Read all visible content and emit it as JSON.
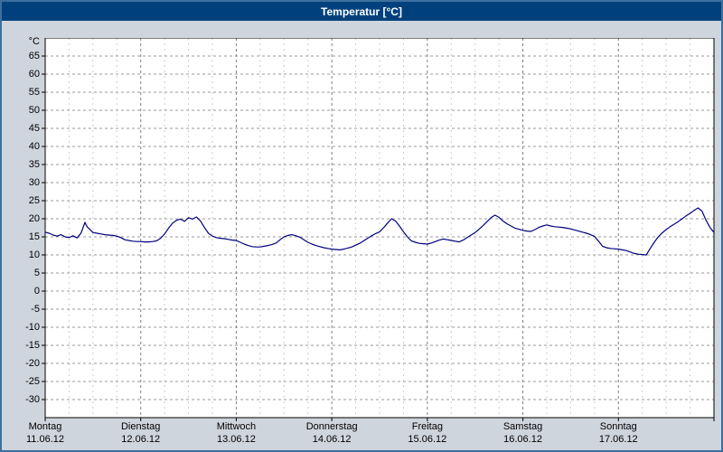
{
  "window": {
    "title": "Temperatur [°C]"
  },
  "colors": {
    "titlebar": "#00417d",
    "window_border": "#3d6f9e",
    "background": "#cfd5dc",
    "plot_background": "#ffffff",
    "line": "#00007f",
    "grid_horizontal": "#999999",
    "grid_day": "#808080",
    "grid_subday": "#cccccc"
  },
  "chart_data": {
    "type": "line",
    "title": "Temperatur [°C]",
    "y_unit": "°C",
    "ylabel": "Temperatur",
    "xlabel": "",
    "ylim": [
      -35,
      70
    ],
    "ytick_step": 5,
    "yticks": [
      65,
      60,
      55,
      50,
      45,
      40,
      35,
      30,
      25,
      20,
      15,
      10,
      5,
      0,
      -5,
      -10,
      -15,
      -20,
      -25,
      -30
    ],
    "grid": "dashed",
    "legend": "none",
    "x_total_hours": 168,
    "subday_grid_hours": 6,
    "x_day_labels": [
      {
        "day": "Montag",
        "date": "11.06.12"
      },
      {
        "day": "Dienstag",
        "date": "12.06.12"
      },
      {
        "day": "Mittwoch",
        "date": "13.06.12"
      },
      {
        "day": "Donnerstag",
        "date": "14.06.12"
      },
      {
        "day": "Freitag",
        "date": "15.06.12"
      },
      {
        "day": "Samstag",
        "date": "16.06.12"
      },
      {
        "day": "Sonntag",
        "date": "17.06.12"
      }
    ],
    "series": [
      {
        "name": "Temperatur",
        "color": "#00007f",
        "points": [
          [
            0,
            16.3
          ],
          [
            1,
            16.0
          ],
          [
            2,
            15.5
          ],
          [
            3,
            15.2
          ],
          [
            4,
            15.6
          ],
          [
            5,
            15.0
          ],
          [
            6,
            14.8
          ],
          [
            7,
            15.3
          ],
          [
            8,
            14.7
          ],
          [
            9,
            16.0
          ],
          [
            10,
            19.0
          ],
          [
            10.5,
            17.8
          ],
          [
            11,
            17.3
          ],
          [
            12,
            16.2
          ],
          [
            13,
            16.0
          ],
          [
            14,
            15.8
          ],
          [
            15,
            15.6
          ],
          [
            16,
            15.5
          ],
          [
            17,
            15.4
          ],
          [
            18,
            15.2
          ],
          [
            19,
            14.8
          ],
          [
            20,
            14.2
          ],
          [
            21,
            14.0
          ],
          [
            22,
            13.8
          ],
          [
            23,
            13.7
          ],
          [
            24,
            13.7
          ],
          [
            25,
            13.6
          ],
          [
            26,
            13.6
          ],
          [
            27,
            13.7
          ],
          [
            28,
            13.9
          ],
          [
            29,
            14.6
          ],
          [
            30,
            15.8
          ],
          [
            31,
            17.4
          ],
          [
            32,
            18.8
          ],
          [
            33,
            19.6
          ],
          [
            34,
            19.9
          ],
          [
            35,
            19.3
          ],
          [
            36,
            20.3
          ],
          [
            37,
            19.9
          ],
          [
            38,
            20.5
          ],
          [
            39,
            19.4
          ],
          [
            40,
            17.6
          ],
          [
            41,
            16.0
          ],
          [
            42,
            15.2
          ],
          [
            43,
            14.8
          ],
          [
            44,
            14.6
          ],
          [
            45,
            14.5
          ],
          [
            46,
            14.3
          ],
          [
            47,
            14.1
          ],
          [
            48,
            14.0
          ],
          [
            49,
            13.5
          ],
          [
            50,
            13.0
          ],
          [
            51,
            12.6
          ],
          [
            52,
            12.3
          ],
          [
            53,
            12.2
          ],
          [
            54,
            12.2
          ],
          [
            55,
            12.4
          ],
          [
            56,
            12.6
          ],
          [
            57,
            12.9
          ],
          [
            58,
            13.3
          ],
          [
            59,
            14.2
          ],
          [
            60,
            15.0
          ],
          [
            61,
            15.4
          ],
          [
            62,
            15.6
          ],
          [
            63,
            15.3
          ],
          [
            64,
            14.9
          ],
          [
            65,
            14.2
          ],
          [
            66,
            13.5
          ],
          [
            67,
            13.0
          ],
          [
            68,
            12.6
          ],
          [
            69,
            12.3
          ],
          [
            70,
            12.0
          ],
          [
            71,
            11.8
          ],
          [
            72,
            11.6
          ],
          [
            73,
            11.5
          ],
          [
            74,
            11.4
          ],
          [
            75,
            11.6
          ],
          [
            76,
            11.9
          ],
          [
            77,
            12.2
          ],
          [
            78,
            12.7
          ],
          [
            79,
            13.2
          ],
          [
            80,
            13.9
          ],
          [
            81,
            14.6
          ],
          [
            82,
            15.3
          ],
          [
            83,
            15.9
          ],
          [
            84,
            16.4
          ],
          [
            85,
            17.5
          ],
          [
            86,
            18.8
          ],
          [
            87,
            20.0
          ],
          [
            88,
            19.4
          ],
          [
            89,
            18.0
          ],
          [
            90,
            16.4
          ],
          [
            91,
            15.0
          ],
          [
            92,
            13.9
          ],
          [
            93,
            13.5
          ],
          [
            94,
            13.2
          ],
          [
            95,
            13.1
          ],
          [
            96,
            13.0
          ],
          [
            97,
            13.3
          ],
          [
            98,
            13.7
          ],
          [
            99,
            14.1
          ],
          [
            100,
            14.4
          ],
          [
            101,
            14.2
          ],
          [
            102,
            14.0
          ],
          [
            103,
            13.8
          ],
          [
            104,
            13.6
          ],
          [
            105,
            14.1
          ],
          [
            106,
            14.8
          ],
          [
            107,
            15.5
          ],
          [
            108,
            16.2
          ],
          [
            109,
            17.1
          ],
          [
            110,
            18.1
          ],
          [
            111,
            19.2
          ],
          [
            112,
            20.3
          ],
          [
            113,
            21.0
          ],
          [
            114,
            20.4
          ],
          [
            115,
            19.4
          ],
          [
            116,
            18.6
          ],
          [
            117,
            18.0
          ],
          [
            118,
            17.4
          ],
          [
            119,
            17.1
          ],
          [
            120,
            16.8
          ],
          [
            121,
            16.6
          ],
          [
            122,
            16.5
          ],
          [
            123,
            17.0
          ],
          [
            124,
            17.6
          ],
          [
            125,
            18.0
          ],
          [
            126,
            18.3
          ],
          [
            127,
            18.0
          ],
          [
            128,
            17.8
          ],
          [
            129,
            17.7
          ],
          [
            130,
            17.6
          ],
          [
            131,
            17.4
          ],
          [
            132,
            17.2
          ],
          [
            133,
            16.9
          ],
          [
            134,
            16.6
          ],
          [
            135,
            16.3
          ],
          [
            136,
            16.0
          ],
          [
            137,
            15.6
          ],
          [
            138,
            15.1
          ],
          [
            139,
            13.8
          ],
          [
            140,
            12.4
          ],
          [
            141,
            12.0
          ],
          [
            142,
            11.8
          ],
          [
            143,
            11.7
          ],
          [
            144,
            11.6
          ],
          [
            145,
            11.4
          ],
          [
            146,
            11.2
          ],
          [
            147,
            10.8
          ],
          [
            148,
            10.4
          ],
          [
            149,
            10.2
          ],
          [
            150,
            10.1
          ],
          [
            151,
            10.0
          ],
          [
            152,
            11.8
          ],
          [
            153,
            13.5
          ],
          [
            154,
            15.0
          ],
          [
            155,
            16.1
          ],
          [
            156,
            17.0
          ],
          [
            157,
            17.8
          ],
          [
            158,
            18.5
          ],
          [
            159,
            19.2
          ],
          [
            160,
            20.0
          ],
          [
            161,
            20.8
          ],
          [
            162,
            21.5
          ],
          [
            163,
            22.3
          ],
          [
            164,
            23.0
          ],
          [
            165,
            22.1
          ],
          [
            166,
            19.6
          ],
          [
            167,
            17.6
          ],
          [
            168,
            16.2
          ]
        ]
      }
    ]
  }
}
